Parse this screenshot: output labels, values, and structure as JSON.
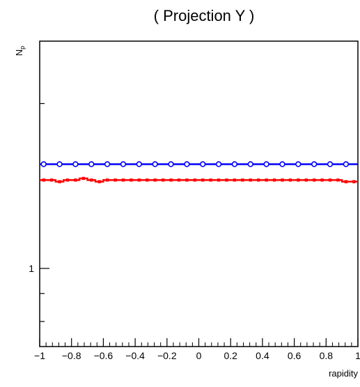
{
  "chart_data": {
    "type": "line",
    "title": "( Projection Y )",
    "xlabel": "rapidity",
    "ylabel": "N_{p}",
    "x_tick_labels": [
      "−1",
      "−0.8",
      "−0.6",
      "−0.4",
      "−0.2",
      "0",
      "0.2",
      "0.4",
      "0.6",
      "0.8",
      "1"
    ],
    "y_tick_labels": [
      "1"
    ],
    "xlim": [
      -1,
      1
    ],
    "ylim": [
      0.72,
      2.6
    ],
    "y_scale": "log",
    "grid": false,
    "legend": "none",
    "x": [
      -0.975,
      -0.925,
      -0.875,
      -0.825,
      -0.775,
      -0.725,
      -0.675,
      -0.625,
      -0.575,
      -0.525,
      -0.475,
      -0.425,
      -0.375,
      -0.325,
      -0.275,
      -0.225,
      -0.175,
      -0.125,
      -0.075,
      -0.025,
      0.025,
      0.075,
      0.125,
      0.175,
      0.225,
      0.275,
      0.325,
      0.375,
      0.425,
      0.475,
      0.525,
      0.575,
      0.625,
      0.675,
      0.725,
      0.775,
      0.825,
      0.875,
      0.925,
      0.975
    ],
    "series": [
      {
        "color": "#0000ff",
        "marker": "open-circle",
        "values": [
          1.55,
          1.55,
          1.55,
          1.55,
          1.55,
          1.55,
          1.55,
          1.55,
          1.55,
          1.55,
          1.55,
          1.55,
          1.55,
          1.55,
          1.55,
          1.55,
          1.55,
          1.55,
          1.55,
          1.55,
          1.55,
          1.55,
          1.55,
          1.55,
          1.55,
          1.55,
          1.55,
          1.55,
          1.55,
          1.55,
          1.55,
          1.55,
          1.55,
          1.55,
          1.55,
          1.55,
          1.55,
          1.55,
          1.55,
          1.55
        ]
      },
      {
        "color": "#ff0000",
        "marker": "filled-square",
        "values": [
          1.45,
          1.45,
          1.44,
          1.45,
          1.45,
          1.46,
          1.45,
          1.44,
          1.45,
          1.45,
          1.45,
          1.45,
          1.45,
          1.45,
          1.45,
          1.45,
          1.45,
          1.45,
          1.45,
          1.45,
          1.45,
          1.45,
          1.45,
          1.45,
          1.45,
          1.45,
          1.45,
          1.45,
          1.45,
          1.45,
          1.45,
          1.45,
          1.45,
          1.45,
          1.45,
          1.45,
          1.45,
          1.45,
          1.44,
          1.44
        ]
      }
    ]
  }
}
